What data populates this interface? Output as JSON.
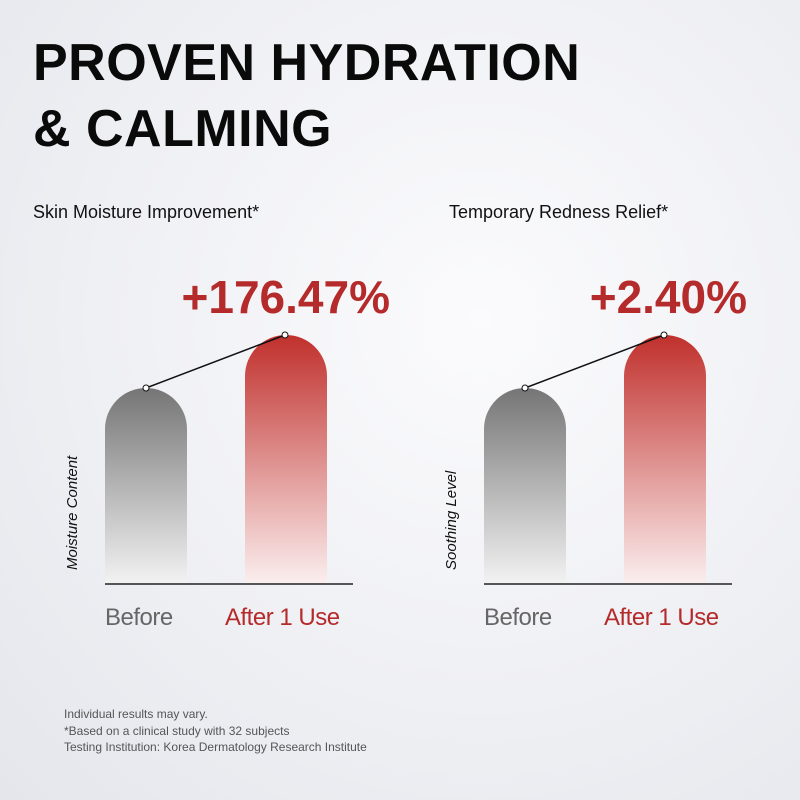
{
  "header": {
    "title_lines": [
      "PROVEN HYDRATION",
      "& CALMING"
    ]
  },
  "panels": [
    {
      "subtitle": "Skin Moisture Improvement*",
      "result": "+176.47%",
      "axis_label": "Moisture Content",
      "categories": [
        "Before",
        "After 1 Use"
      ]
    },
    {
      "subtitle": "Temporary Redness Relief*",
      "result": "+2.40%",
      "axis_label": "Soothing Level",
      "categories": [
        "Before",
        "After 1 Use"
      ]
    }
  ],
  "footnotes": [
    "Individual results may vary.",
    "*Based on a clinical study with 32 subjects",
    "Testing Institution: Korea Dermatology Research Institute"
  ]
}
